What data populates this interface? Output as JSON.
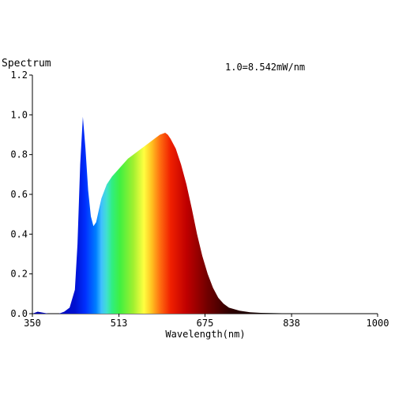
{
  "chart_data": {
    "type": "area",
    "title": "",
    "ylabel": "Spectrum",
    "xlabel": "Wavelength(nm)",
    "annotation": "1.0=8.542mW/nm",
    "xlim": [
      350,
      1000
    ],
    "ylim": [
      0,
      1.2
    ],
    "x_ticks": [
      "350",
      "513",
      "675",
      "838",
      "1000"
    ],
    "y_ticks": [
      "0.0",
      "0.2",
      "0.4",
      "0.6",
      "0.8",
      "1.0",
      "1.2"
    ],
    "grid": false,
    "fill": "wavelength-color gradient",
    "series": [
      {
        "x": [
          350,
          360,
          380,
          400,
          410,
          420,
          430,
          435,
          440,
          445,
          450,
          455,
          460,
          465,
          470,
          475,
          480,
          490,
          500,
          510,
          520,
          530,
          540,
          550,
          560,
          570,
          580,
          590,
          600,
          605,
          610,
          620,
          630,
          640,
          650,
          660,
          670,
          680,
          690,
          700,
          710,
          720,
          740,
          760,
          780,
          800,
          820,
          850,
          900,
          1000
        ],
        "y": [
          0.0,
          0.01,
          0.0,
          0.0,
          0.01,
          0.03,
          0.12,
          0.35,
          0.75,
          0.99,
          0.83,
          0.62,
          0.49,
          0.44,
          0.46,
          0.52,
          0.58,
          0.65,
          0.69,
          0.72,
          0.75,
          0.78,
          0.8,
          0.82,
          0.84,
          0.86,
          0.88,
          0.9,
          0.91,
          0.9,
          0.88,
          0.83,
          0.75,
          0.65,
          0.53,
          0.4,
          0.29,
          0.2,
          0.13,
          0.08,
          0.05,
          0.03,
          0.015,
          0.007,
          0.004,
          0.003,
          0.002,
          0.0,
          0.0,
          0.0
        ]
      }
    ]
  }
}
